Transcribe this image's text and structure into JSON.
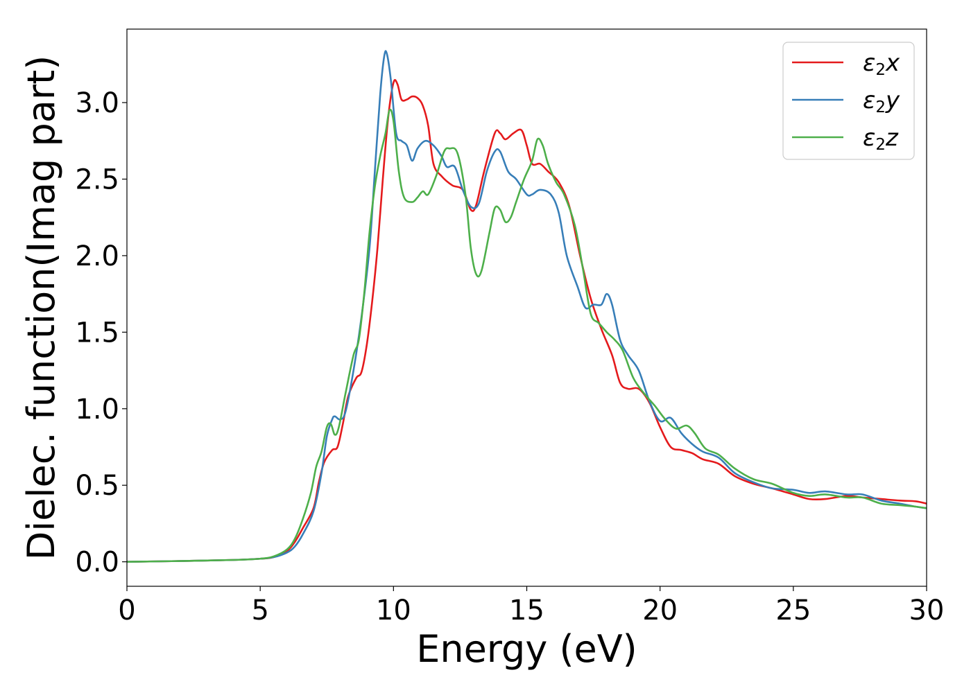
{
  "chart_data": {
    "type": "line",
    "title": "",
    "xlabel": "Energy (eV)",
    "ylabel": "Dielec. function(Imag part)",
    "xlim": [
      0,
      30
    ],
    "ylim": [
      -0.16,
      3.48
    ],
    "xticks": [
      0,
      5,
      10,
      15,
      20,
      25,
      30
    ],
    "xtick_labels": [
      "0",
      "5",
      "10",
      "15",
      "20",
      "25",
      "30"
    ],
    "yticks": [
      0.0,
      0.5,
      1.0,
      1.5,
      2.0,
      2.5,
      3.0
    ],
    "ytick_labels": [
      "0.0",
      "0.5",
      "1.0",
      "1.5",
      "2.0",
      "2.5",
      "3.0"
    ],
    "grid": false,
    "legend_position": "top-right",
    "series": [
      {
        "name": "ε2x",
        "legend": {
          "base": "ε",
          "sub": "2",
          "var": "x"
        },
        "color": "#e41a1c",
        "points": [
          [
            0,
            0
          ],
          [
            2,
            0.005
          ],
          [
            4,
            0.012
          ],
          [
            5,
            0.02
          ],
          [
            5.5,
            0.03
          ],
          [
            6,
            0.07
          ],
          [
            6.3,
            0.13
          ],
          [
            6.6,
            0.22
          ],
          [
            7,
            0.35
          ],
          [
            7.2,
            0.52
          ],
          [
            7.4,
            0.65
          ],
          [
            7.7,
            0.73
          ],
          [
            7.9,
            0.75
          ],
          [
            8.1,
            0.9
          ],
          [
            8.3,
            1.08
          ],
          [
            8.6,
            1.2
          ],
          [
            8.8,
            1.24
          ],
          [
            9,
            1.42
          ],
          [
            9.2,
            1.7
          ],
          [
            9.4,
            2.05
          ],
          [
            9.6,
            2.5
          ],
          [
            9.8,
            2.9
          ],
          [
            10,
            3.13
          ],
          [
            10.15,
            3.12
          ],
          [
            10.3,
            3.02
          ],
          [
            10.5,
            3.02
          ],
          [
            10.7,
            3.04
          ],
          [
            10.9,
            3.03
          ],
          [
            11.1,
            2.98
          ],
          [
            11.3,
            2.85
          ],
          [
            11.5,
            2.6
          ],
          [
            11.8,
            2.52
          ],
          [
            12.2,
            2.46
          ],
          [
            12.6,
            2.43
          ],
          [
            12.9,
            2.3
          ],
          [
            13.1,
            2.33
          ],
          [
            13.4,
            2.55
          ],
          [
            13.8,
            2.8
          ],
          [
            14,
            2.8
          ],
          [
            14.2,
            2.76
          ],
          [
            14.5,
            2.8
          ],
          [
            14.8,
            2.82
          ],
          [
            15,
            2.72
          ],
          [
            15.2,
            2.6
          ],
          [
            15.5,
            2.6
          ],
          [
            15.8,
            2.55
          ],
          [
            16.2,
            2.48
          ],
          [
            16.6,
            2.32
          ],
          [
            17,
            2.0
          ],
          [
            17.4,
            1.72
          ],
          [
            17.8,
            1.52
          ],
          [
            18.2,
            1.35
          ],
          [
            18.5,
            1.17
          ],
          [
            18.8,
            1.13
          ],
          [
            19.2,
            1.13
          ],
          [
            19.6,
            1.04
          ],
          [
            20,
            0.88
          ],
          [
            20.4,
            0.75
          ],
          [
            20.8,
            0.73
          ],
          [
            21.2,
            0.71
          ],
          [
            21.6,
            0.67
          ],
          [
            22.2,
            0.64
          ],
          [
            22.8,
            0.56
          ],
          [
            23.5,
            0.51
          ],
          [
            24.2,
            0.48
          ],
          [
            25,
            0.44
          ],
          [
            25.6,
            0.41
          ],
          [
            26.2,
            0.41
          ],
          [
            27,
            0.43
          ],
          [
            27.6,
            0.42
          ],
          [
            28.3,
            0.41
          ],
          [
            29,
            0.4
          ],
          [
            29.6,
            0.395
          ],
          [
            30,
            0.38
          ]
        ]
      },
      {
        "name": "ε2y",
        "legend": {
          "base": "ε",
          "sub": "2",
          "var": "y"
        },
        "color": "#377eb8",
        "points": [
          [
            0,
            0
          ],
          [
            2,
            0.005
          ],
          [
            4,
            0.012
          ],
          [
            5,
            0.02
          ],
          [
            5.5,
            0.03
          ],
          [
            6,
            0.06
          ],
          [
            6.3,
            0.1
          ],
          [
            6.6,
            0.18
          ],
          [
            7,
            0.33
          ],
          [
            7.3,
            0.58
          ],
          [
            7.5,
            0.82
          ],
          [
            7.7,
            0.93
          ],
          [
            7.8,
            0.95
          ],
          [
            8,
            0.93
          ],
          [
            8.2,
            0.98
          ],
          [
            8.5,
            1.25
          ],
          [
            8.8,
            1.6
          ],
          [
            9.1,
            2.05
          ],
          [
            9.3,
            2.55
          ],
          [
            9.5,
            3.05
          ],
          [
            9.65,
            3.3
          ],
          [
            9.75,
            3.32
          ],
          [
            9.9,
            3.15
          ],
          [
            10.1,
            2.8
          ],
          [
            10.3,
            2.75
          ],
          [
            10.5,
            2.72
          ],
          [
            10.7,
            2.62
          ],
          [
            10.9,
            2.7
          ],
          [
            11.2,
            2.75
          ],
          [
            11.5,
            2.72
          ],
          [
            11.8,
            2.65
          ],
          [
            12,
            2.58
          ],
          [
            12.3,
            2.58
          ],
          [
            12.6,
            2.43
          ],
          [
            12.9,
            2.32
          ],
          [
            13.2,
            2.34
          ],
          [
            13.5,
            2.55
          ],
          [
            13.8,
            2.68
          ],
          [
            14,
            2.68
          ],
          [
            14.3,
            2.55
          ],
          [
            14.6,
            2.5
          ],
          [
            15,
            2.4
          ],
          [
            15.2,
            2.4
          ],
          [
            15.5,
            2.43
          ],
          [
            15.9,
            2.4
          ],
          [
            16.2,
            2.28
          ],
          [
            16.5,
            2.0
          ],
          [
            16.9,
            1.8
          ],
          [
            17.2,
            1.66
          ],
          [
            17.5,
            1.68
          ],
          [
            17.8,
            1.68
          ],
          [
            18,
            1.75
          ],
          [
            18.2,
            1.68
          ],
          [
            18.5,
            1.45
          ],
          [
            18.8,
            1.35
          ],
          [
            19.2,
            1.25
          ],
          [
            19.6,
            1.05
          ],
          [
            20,
            0.92
          ],
          [
            20.4,
            0.94
          ],
          [
            20.8,
            0.84
          ],
          [
            21.2,
            0.77
          ],
          [
            21.6,
            0.72
          ],
          [
            22.2,
            0.68
          ],
          [
            22.8,
            0.58
          ],
          [
            23.5,
            0.52
          ],
          [
            24.2,
            0.48
          ],
          [
            25,
            0.47
          ],
          [
            25.6,
            0.45
          ],
          [
            26.2,
            0.46
          ],
          [
            27,
            0.44
          ],
          [
            27.6,
            0.44
          ],
          [
            28.3,
            0.4
          ],
          [
            29,
            0.38
          ],
          [
            29.6,
            0.36
          ],
          [
            30,
            0.35
          ]
        ]
      },
      {
        "name": "ε2z",
        "legend": {
          "base": "ε",
          "sub": "2",
          "var": "z"
        },
        "color": "#4daf4a",
        "points": [
          [
            0,
            0
          ],
          [
            2,
            0.005
          ],
          [
            4,
            0.012
          ],
          [
            5,
            0.02
          ],
          [
            5.5,
            0.035
          ],
          [
            6,
            0.08
          ],
          [
            6.3,
            0.15
          ],
          [
            6.6,
            0.28
          ],
          [
            6.9,
            0.45
          ],
          [
            7.1,
            0.62
          ],
          [
            7.3,
            0.72
          ],
          [
            7.5,
            0.88
          ],
          [
            7.65,
            0.9
          ],
          [
            7.8,
            0.83
          ],
          [
            7.95,
            0.88
          ],
          [
            8.2,
            1.1
          ],
          [
            8.5,
            1.35
          ],
          [
            8.7,
            1.45
          ],
          [
            8.9,
            1.75
          ],
          [
            9.1,
            2.15
          ],
          [
            9.3,
            2.45
          ],
          [
            9.5,
            2.65
          ],
          [
            9.7,
            2.8
          ],
          [
            9.85,
            2.95
          ],
          [
            10,
            2.88
          ],
          [
            10.2,
            2.55
          ],
          [
            10.4,
            2.38
          ],
          [
            10.7,
            2.35
          ],
          [
            10.9,
            2.38
          ],
          [
            11.1,
            2.42
          ],
          [
            11.3,
            2.4
          ],
          [
            11.6,
            2.52
          ],
          [
            11.9,
            2.68
          ],
          [
            12.1,
            2.7
          ],
          [
            12.4,
            2.67
          ],
          [
            12.7,
            2.4
          ],
          [
            12.9,
            2.05
          ],
          [
            13.1,
            1.88
          ],
          [
            13.3,
            1.9
          ],
          [
            13.6,
            2.15
          ],
          [
            13.8,
            2.31
          ],
          [
            14,
            2.3
          ],
          [
            14.2,
            2.22
          ],
          [
            14.4,
            2.25
          ],
          [
            14.6,
            2.35
          ],
          [
            14.9,
            2.5
          ],
          [
            15.2,
            2.62
          ],
          [
            15.4,
            2.76
          ],
          [
            15.6,
            2.72
          ],
          [
            15.8,
            2.6
          ],
          [
            16.1,
            2.48
          ],
          [
            16.4,
            2.4
          ],
          [
            16.8,
            2.2
          ],
          [
            17.1,
            1.92
          ],
          [
            17.4,
            1.62
          ],
          [
            17.7,
            1.56
          ],
          [
            18,
            1.5
          ],
          [
            18.3,
            1.45
          ],
          [
            18.6,
            1.38
          ],
          [
            19,
            1.2
          ],
          [
            19.4,
            1.1
          ],
          [
            19.8,
            1.02
          ],
          [
            20.2,
            0.93
          ],
          [
            20.6,
            0.87
          ],
          [
            21,
            0.89
          ],
          [
            21.3,
            0.84
          ],
          [
            21.7,
            0.74
          ],
          [
            22.2,
            0.7
          ],
          [
            22.8,
            0.61
          ],
          [
            23.5,
            0.54
          ],
          [
            24.2,
            0.51
          ],
          [
            25,
            0.45
          ],
          [
            25.6,
            0.43
          ],
          [
            26.2,
            0.44
          ],
          [
            27,
            0.42
          ],
          [
            27.6,
            0.42
          ],
          [
            28.3,
            0.38
          ],
          [
            29,
            0.37
          ],
          [
            29.6,
            0.36
          ],
          [
            30,
            0.35
          ]
        ]
      }
    ]
  }
}
